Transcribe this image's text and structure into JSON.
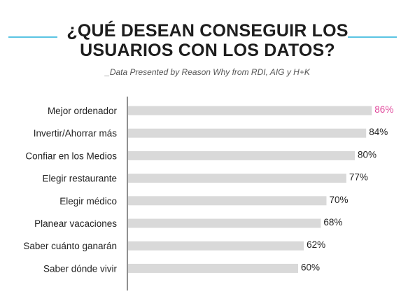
{
  "header": {
    "title_line1": "¿QUÉ DESEAN CONSEGUIR LOS",
    "title_line2": "USUARIOS CON LOS DATOS?",
    "subtitle": "_Data Presented by Reason Why from RDI, AIG y H+K"
  },
  "colors": {
    "accent_line": "#5bc4e3",
    "bar": "#d9d9d9",
    "highlight_text": "#e0489b",
    "text": "#222222",
    "axis": "#222222"
  },
  "chart_data": {
    "type": "bar",
    "orientation": "horizontal",
    "categories": [
      "Mejor ordenador",
      "Invertir/Ahorrar más",
      "Confiar en los Medios",
      "Elegir restaurante",
      "Elegir médico",
      "Planear vacaciones",
      "Saber cuánto ganarán",
      "Saber dónde vivir"
    ],
    "values": [
      86,
      84,
      80,
      77,
      70,
      68,
      62,
      60
    ],
    "value_labels": [
      "86%",
      "84%",
      "80%",
      "77%",
      "70%",
      "68%",
      "62%",
      "60%"
    ],
    "highlight_index": 0,
    "xlim": [
      0,
      100
    ],
    "grid": false,
    "legend": "none",
    "title": "¿QUÉ DESEAN CONSEGUIR LOS USUARIOS CON LOS DATOS?",
    "xlabel": "",
    "ylabel": ""
  }
}
